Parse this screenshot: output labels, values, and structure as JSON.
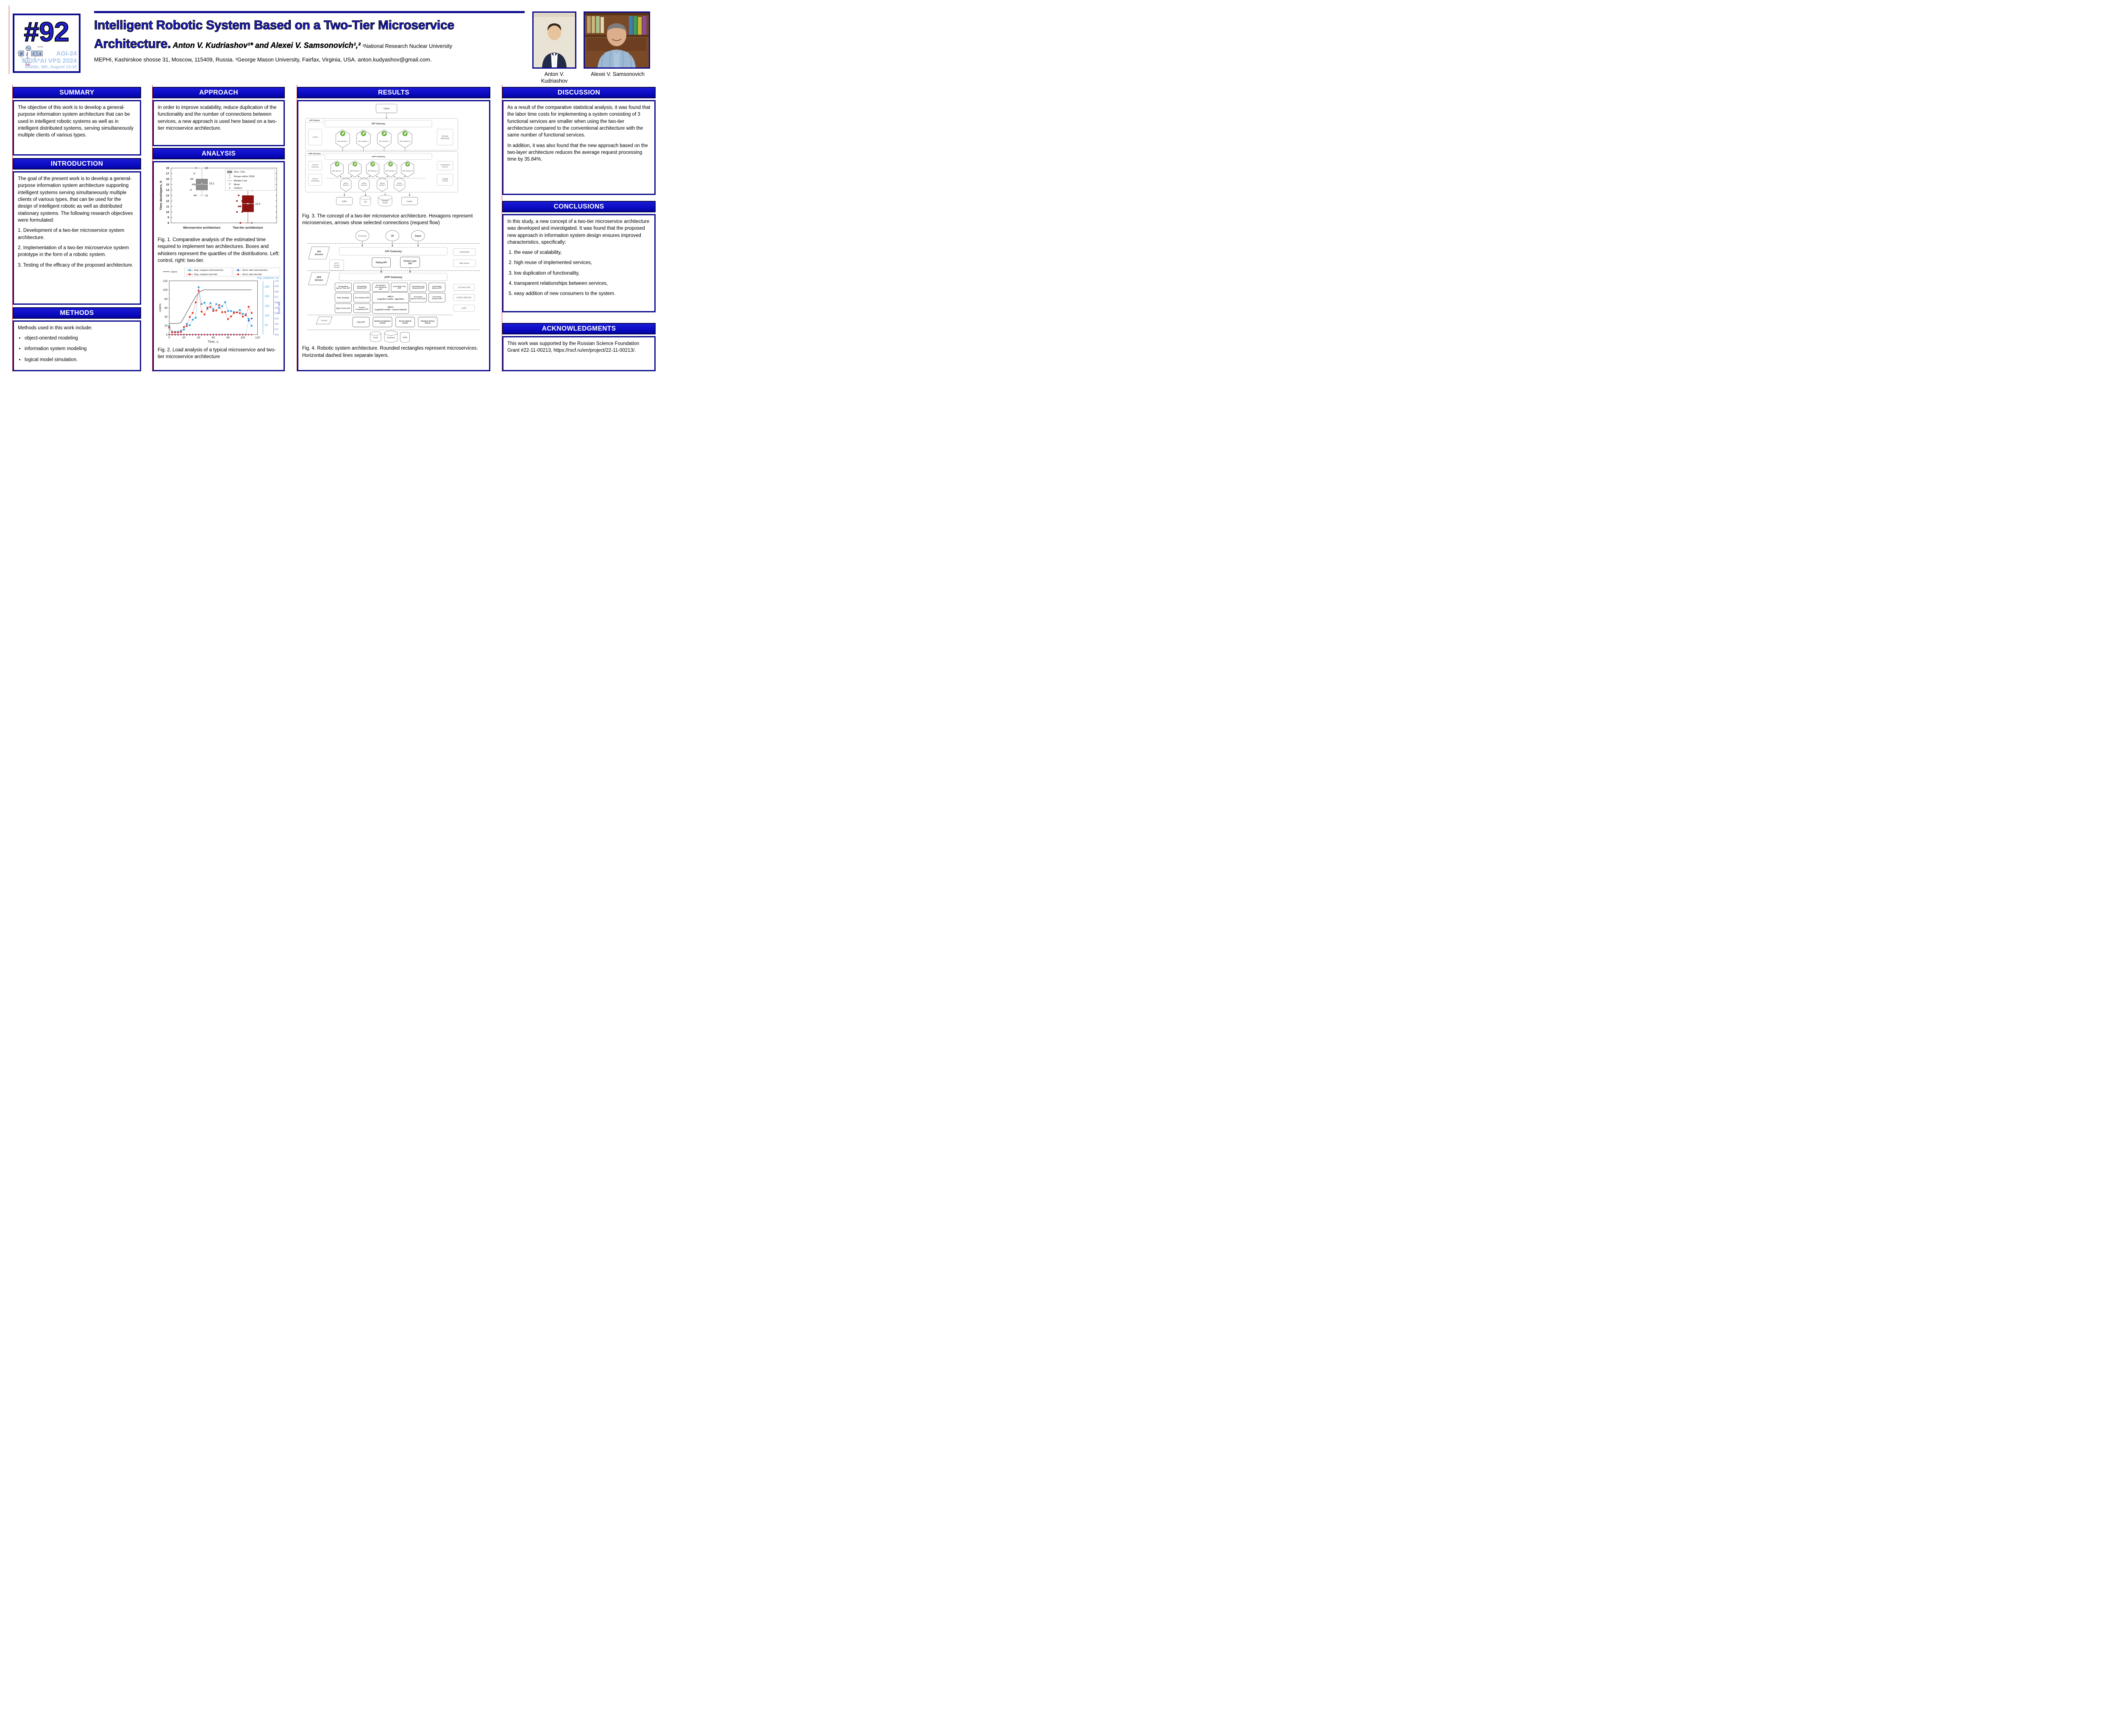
{
  "badge": {
    "number": "#92",
    "conference_lines": [
      "AGI-24",
      "BICA*AI VPS 2024",
      "Seattle, WA, August 13-16"
    ],
    "logo_letters": [
      "B",
      "C",
      "A"
    ],
    "logo_society": "SOCIETY"
  },
  "header": {
    "title": "Intelligent Robotic System Based on a Two-Tier Microservice Architecture.",
    "authors": "Anton V. Kudriashov¹* and Alexei V. Samsonovich¹,²",
    "affiliation_inline": "¹National Research Nuclear University",
    "address_line": "MEPHI, Kashirskoe shosse 31, Moscow, 115409, Russia. ²George Mason University, Fairfax, Virginia, USA. anton.kudyashov@gmail.com.",
    "photos": [
      {
        "name": "Anton V. Kudriashov"
      },
      {
        "name": "Alexei V. Samsonovich"
      }
    ]
  },
  "sections": {
    "summary": {
      "title": "SUMMARY",
      "body": "The objective of this work is to develop a general-purpose information system architecture that can be used in intelligent robotic systems as well as in intelligent distributed systems, serving simultaneously multiple clients of various types."
    },
    "introduction": {
      "title": "INTRODUCTION",
      "paragraphs": [
        "The goal of the present work is to develop a general-purpose information system architecture supporting intelligent systems serving simultaneously multiple clients of various types, that can be used for the design of intelligent robotic as well as distributed stationary systems. The following research objectives were formulated:",
        "1. Development of a two-tier microservice system architecture.",
        "2. Implementation of a two-tier microservice system prototype in the form of a robotic system.",
        "3. Testing of the efficacy of the proposed architecture."
      ]
    },
    "methods": {
      "title": "METHODS",
      "intro": "Methods used in this work include:",
      "bullets": [
        "object-oriented modeling",
        "information system modeling",
        "logical model simulation."
      ]
    },
    "approach": {
      "title": "APPROACH",
      "body": "In order to improve scalability, reduce duplication of the functionality and the number of connections between services, a new approach is used here based on a two-tier microservice architecture."
    },
    "analysis": {
      "title": "ANALYSIS",
      "fig1_caption": "Fig. 1. Comparative analysis of the estimated time required to implement two architectures. Boxes and whiskers represent the quartiles of the distributions. Left: control, right: two-tier.",
      "fig2_caption": "Fig. 2. Load analysis of a typical microservice and two-tier microservice architecture"
    },
    "results": {
      "title": "RESULTS",
      "fig3_caption": "Fig. 3. The concept of a two-tier microservice architecture. Hexagons represent microservices, arrows show selected connections (request flow)",
      "fig4_caption": "Fig. 4. Robotic system architecture. Rounded rectangles represent microservices. Horizontal dashed lines separate layers."
    },
    "discussion": {
      "title": "DISCUSSION",
      "paragraphs": [
        "As a result of the comparative statistical analysis, it was found that the labor time costs for implementing a system consisting of 3 functional services are smaller when using the two-tier architecture compared to the conventional architecture with the same number of functional services.",
        "In addition, it was also found that the new approach based on the two-layer architecture reduces the average request processing time by 35.84%."
      ]
    },
    "conclusions": {
      "title": "CONCLUSIONS",
      "intro": "In this study, a new concept of a two-tier microservice architecture was developed and investigated. It was found that the proposed new approach in information system design ensures improved characteristics, specifically:",
      "items": [
        "the ease of scalability,",
        "high reuse of implemented services,",
        "low duplication of functionality,",
        "transparent relationships between services,",
        "easy addition of new consumers to the system."
      ]
    },
    "acknowledgments": {
      "title": "ACKNOWLEDGMENTS",
      "body": "This work was supported by the Russian Science Foundation Grant #22-11-00213, https://rscf.ru/en/project/22-11-00213/."
    }
  },
  "chart_data": [
    {
      "type": "box",
      "title": "",
      "xlabel": "",
      "ylabel": "Time developers, h",
      "ylim": [
        8,
        18
      ],
      "y_ticks": [
        8,
        9,
        10,
        11,
        12,
        13,
        14,
        15,
        16,
        17,
        18
      ],
      "categories": [
        "Microservice architecture",
        "Two-tier architecture"
      ],
      "legend": [
        "25%~75%",
        "Range within 2IQR",
        "Median Line",
        "Mean",
        "Outliers"
      ],
      "series": [
        {
          "name": "Microservice architecture",
          "q1": 14,
          "median": 15,
          "q3": 16,
          "mean": 15.2,
          "mean_label": "15,2",
          "whisker_low": 13,
          "whisker_high": 18,
          "low_label": "13",
          "high_label": "18",
          "color": "#8f8f8f",
          "outliers": [
            18,
            17,
            16,
            16,
            15,
            15,
            15,
            14,
            13,
            13
          ]
        },
        {
          "name": "Two-tier architecture",
          "q1": 10,
          "median": 11.5,
          "q3": 13,
          "mean": 11.5,
          "mean_label": "11,5",
          "whisker_low": 8,
          "whisker_high": 14,
          "low_label": "8",
          "high_label": "14",
          "color": "#8e1010",
          "outliers": [
            14,
            14,
            13,
            12,
            12,
            11,
            11,
            10,
            10,
            8
          ]
        }
      ]
    },
    {
      "type": "line",
      "xlabel": "Time, s.",
      "ylabel_left": "Users",
      "ylabel_right1": "Avg. response, ms.",
      "ylabel_right2": "Error rate",
      "xlim": [
        0,
        120
      ],
      "ylim_left": [
        0,
        120
      ],
      "ylim_right1": [
        0,
        280
      ],
      "ylim_right2": [
        0,
        1
      ],
      "x_ticks": [
        0,
        20,
        40,
        60,
        80,
        100,
        120
      ],
      "right1_ticks": [
        50,
        100,
        150,
        200,
        250
      ],
      "x": [
        0,
        4,
        8,
        12,
        16,
        20,
        24,
        28,
        32,
        36,
        40,
        44,
        48,
        52,
        56,
        60,
        64,
        68,
        72,
        76,
        80,
        84,
        88,
        92,
        96,
        100,
        104,
        108,
        112
      ],
      "series": [
        {
          "name": "Users",
          "axis": "left",
          "color": "#444444",
          "marker": "none",
          "values": [
            25,
            25,
            25,
            25,
            27,
            38,
            50,
            62,
            74,
            85,
            93,
            98,
            100,
            100,
            100,
            100,
            100,
            100,
            100,
            100,
            100,
            100,
            100,
            100,
            100,
            100,
            100,
            100,
            100
          ]
        },
        {
          "name": "Avg. respons microservice",
          "axis": "right1",
          "color": "#2f9fe0",
          "marker": "circle",
          "values": [
            45,
            15,
            15,
            15,
            20,
            26,
            56,
            49,
            78,
            88,
            247,
            159,
            166,
            134,
            164,
            132,
            159,
            140,
            148,
            169,
            123,
            123,
            118,
            116,
            128,
            108,
            106,
            82,
            46
          ]
        },
        {
          "name": "Avg. respons two-tier",
          "axis": "right1",
          "color": "#e23b2e",
          "marker": "circle",
          "values": [
            37,
            12,
            12,
            12,
            14,
            40,
            45,
            92,
            113,
            168,
            229,
            120,
            105,
            140,
            144,
            123,
            126,
            154,
            117,
            118,
            81,
            95,
            113,
            116,
            112,
            94,
            101,
            145,
            113
          ]
        },
        {
          "name": "Error rate microservice",
          "axis": "right2",
          "color": "#2b50c8",
          "marker": "diamond",
          "values": [
            0,
            0,
            0,
            0,
            0,
            0,
            0,
            0,
            0,
            0,
            0,
            0,
            0,
            0,
            0,
            0,
            0,
            0,
            0,
            0,
            0,
            0,
            0,
            0,
            0,
            0,
            0,
            0.26,
            0.3
          ]
        },
        {
          "name": "Error rate two-tier",
          "axis": "right2",
          "color": "#cc3333",
          "marker": "diamond",
          "values": [
            0,
            0,
            0,
            0,
            0,
            0,
            0,
            0,
            0,
            0,
            0,
            0,
            0,
            0,
            0,
            0,
            0,
            0,
            0,
            0,
            0,
            0,
            0,
            0,
            0,
            0,
            0,
            0,
            0
          ]
        }
      ],
      "legend_groups": [
        [
          "Users"
        ],
        [
          "Avg. respons microservice",
          "Avg. respons two-tier"
        ],
        [
          "Error rate microservice",
          "Error rate two-tier"
        ]
      ]
    }
  ],
  "fig3": {
    "client": "Client",
    "api_layer": "API Serive",
    "api_gateway": "API Gateway",
    "auth": [
      "AUTH"
    ],
    "service_discovery": [
      "Service",
      "Discovery"
    ],
    "api_services": [
      "API Service 1",
      "API Service 2",
      "API Service 3",
      "API Service N"
    ],
    "app_layer": "APP Service",
    "app_gateway": "APP Gateway",
    "app_service_discovery": [
      "Service",
      "Discovery"
    ],
    "configuration": [
      "Configuration",
      "Service"
    ],
    "monitoring": [
      "Service",
      "Monitoring"
    ],
    "logging": [
      "Logging",
      "Service"
    ],
    "app_services": [
      "APP Service 1",
      "APP Service 2",
      "APP Service 3",
      "APP Service 4",
      "APP Service N"
    ],
    "atomic_services": [
      [
        "Atomic",
        "Service 1"
      ],
      [
        "Atomic",
        "Service 2"
      ],
      [
        "Atomic",
        "Service 3"
      ],
      [
        "Atomic",
        "Service N"
      ]
    ],
    "storage": [
      [
        "Kafka"
      ],
      [
        "DB"
      ],
      [
        "Database",
        "NoSQL"
      ],
      [
        "Cache"
      ]
    ]
  },
  "fig4": {
    "clients": [
      "Desktop",
      "VR",
      "Robot"
    ],
    "api_layer": [
      "API",
      "Service"
    ],
    "api_gateway": "API Gateway",
    "kubernetes": "Kubernetes",
    "auth": [
      "AUTH",
      "Service",
      "OAuth2"
    ],
    "dialog_api": [
      "Dialog API"
    ],
    "verbal_logic_api": [
      "Verbal Logic",
      "API"
    ],
    "web_server": "Web Server",
    "app_layer": [
      "APP",
      "Service"
    ],
    "app_gateway": "APP Gateway",
    "row1": [
      [
        "Recognition",
        "Speech Tone APP"
      ],
      [
        "Recognition",
        "Mimics APP"
      ],
      [
        "Recognition",
        "Text Sentiment",
        "APP"
      ],
      [
        "Generation Text",
        "APP"
      ],
      [
        "Generating Text",
        "Sentiment APP"
      ],
      [
        "Generation",
        "Mimics APP"
      ]
    ],
    "log_analysis": "LOG ANALYSIS",
    "row2_left": [
      [
        "Body language"
      ],
      [
        "Text Analysis APP"
      ]
    ],
    "ebica_algorithm": [
      "eBICA",
      "Cognitive model - algorithm"
    ],
    "row2_right": [
      [
        "Generation",
        "Speech Tones APP"
      ],
      [
        "Generation",
        "Gesture APP"
      ]
    ],
    "config_service": "CONFIG SERVICE",
    "row3_left": [
      [
        "Sight Control APP"
      ],
      [
        "Gesture",
        "recognition APP"
      ]
    ],
    "ebica_neural": [
      "eBICA",
      "Cognitive model - neural network"
    ],
    "audit": "AUDIT",
    "atomic_layer": "Atomic",
    "atomic_row": [
      [
        "Chat GPT"
      ],
      [
        "Speech recognition",
        "Atomic"
      ],
      [
        "Text-to-Speech",
        "Atomic"
      ],
      [
        "Dialogue history",
        "Atomic"
      ]
    ],
    "storage": [
      "Redis",
      "Database",
      "Kafka"
    ]
  },
  "colors": {
    "accent_blue": "#0a0ac4",
    "border_navy": "#0d0d8f",
    "title_blue": "#1d1dd2",
    "conference_blue": "#a9c6ee",
    "box_gray": "#8f8f8f",
    "box_dark_red": "#8e1010",
    "spring_green": "#6DB33F",
    "series_light_blue": "#2f9fe0",
    "series_red": "#e23b2e",
    "series_dark_blue": "#2b50c8"
  }
}
